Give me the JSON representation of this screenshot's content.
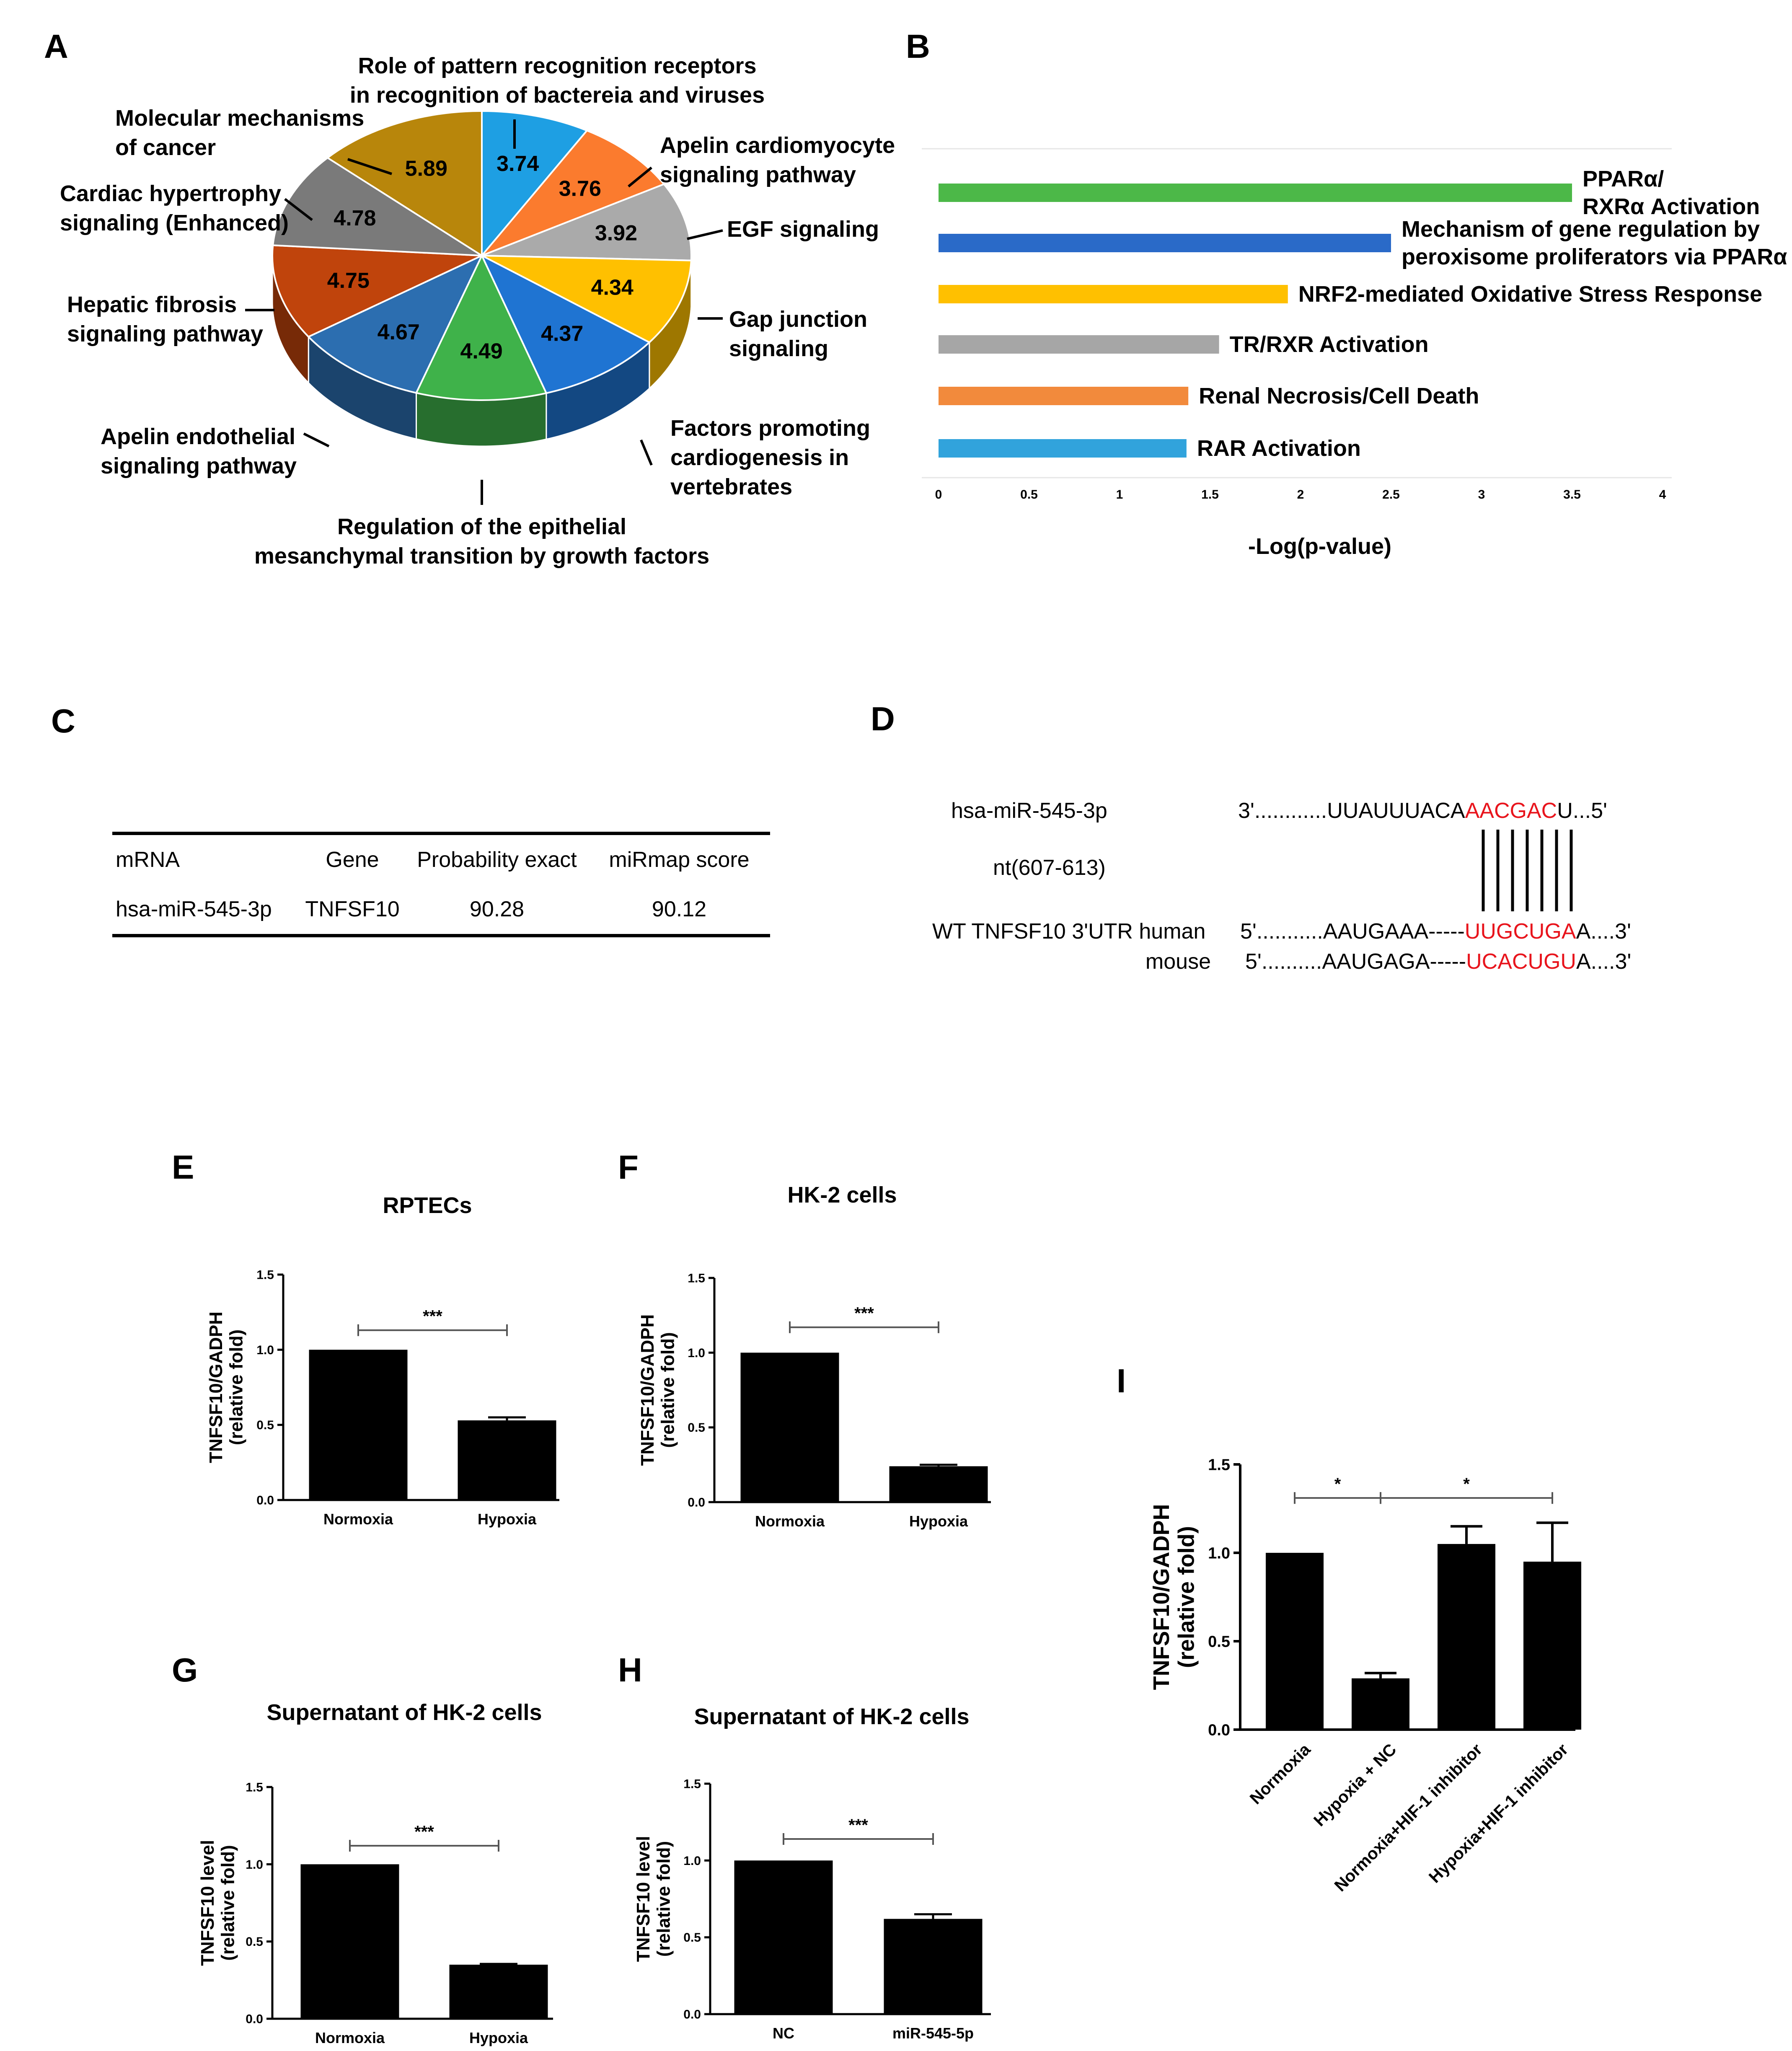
{
  "panels": {
    "A": "A",
    "B": "B",
    "C": "C",
    "D": "D",
    "E": "E",
    "F": "F",
    "G": "G",
    "H": "H",
    "I": "I"
  },
  "chart_data": [
    {
      "id": "A",
      "type": "pie",
      "title": "",
      "slices": [
        {
          "label": "Role of pattern recognition receptors in recognition of bactereia and viruses",
          "label_lines": [
            "Role of pattern recognition receptors",
            "in recognition of bactereia and viruses"
          ],
          "value": 3.74,
          "color": "#1e9fe3"
        },
        {
          "label": "Apelin cardiomyocyte signaling pathway",
          "label_lines": [
            "Apelin cardiomyocyte",
            "signaling pathway"
          ],
          "value": 3.76,
          "color": "#fb7b2e"
        },
        {
          "label": "EGF signaling",
          "label_lines": [
            "EGF signaling"
          ],
          "value": 3.92,
          "color": "#aaaaaa"
        },
        {
          "label": "Gap junction signaling",
          "label_lines": [
            "Gap junction",
            "signaling"
          ],
          "value": 4.34,
          "color": "#ffc000"
        },
        {
          "label": "Factors promoting cardiogenesis in vertebrates",
          "label_lines": [
            "Factors promoting",
            "cardiogenesis in",
            "vertebrates"
          ],
          "value": 4.37,
          "color": "#1f74d2"
        },
        {
          "label": "Regulation of the epithelial mesanchymal transition by growth factors",
          "label_lines": [
            "Regulation of the epithelial",
            "mesanchymal transition by growth factors"
          ],
          "value": 4.49,
          "color": "#3fb24a"
        },
        {
          "label": "Apelin endothelial signaling pathway",
          "label_lines": [
            "Apelin endothelial",
            "signaling pathway"
          ],
          "value": 4.67,
          "color": "#2c6eb0"
        },
        {
          "label": "Hepatic fibrosis signaling pathway",
          "label_lines": [
            "Hepatic fibrosis",
            "signaling pathway"
          ],
          "value": 4.75,
          "color": "#c0440c"
        },
        {
          "label": "Cardiac hypertrophy signaling (Enhanced)",
          "label_lines": [
            "Cardiac hypertrophy",
            "signaling (Enhanced)"
          ],
          "value": 4.78,
          "color": "#7a7a7a"
        },
        {
          "label": "Molecular mechanisms of cancer",
          "label_lines": [
            "Molecular mechanisms",
            "of cancer"
          ],
          "value": 5.89,
          "color": "#b8860b"
        }
      ]
    },
    {
      "id": "B",
      "type": "bar",
      "orientation": "horizontal",
      "xlabel": "-Log(p-value)",
      "xlim": [
        0,
        4
      ],
      "xticks": [
        "0",
        "0.5",
        "1",
        "1.5",
        "2",
        "2.5",
        "3",
        "3.5",
        "4"
      ],
      "bars": [
        {
          "label": "PPARα/ RXRα Activation",
          "label_lines": [
            "PPARα/",
            "RXRα Activation"
          ],
          "value": 3.5,
          "color": "#4cb848"
        },
        {
          "label": "Mechanism of gene regulation by peroxisome proliferators via PPARα",
          "label_lines": [
            "Mechanism of gene regulation by",
            "peroxisome proliferators via PPARα"
          ],
          "value": 2.5,
          "color": "#2a6ac8"
        },
        {
          "label": "NRF2-mediated Oxidative Stress Response",
          "label_lines": [
            "NRF2-mediated Oxidative Stress Response"
          ],
          "value": 1.93,
          "color": "#ffc000"
        },
        {
          "label": "TR/RXR Activation",
          "label_lines": [
            "TR/RXR Activation"
          ],
          "value": 1.55,
          "color": "#a6a6a6"
        },
        {
          "label": "Renal Necrosis/Cell Death",
          "label_lines": [
            "Renal Necrosis/Cell Death"
          ],
          "value": 1.38,
          "color": "#f28a3c"
        },
        {
          "label": "RAR Activation",
          "label_lines": [
            "RAR Activation"
          ],
          "value": 1.37,
          "color": "#31a3dc"
        }
      ]
    },
    {
      "id": "E",
      "type": "bar",
      "title": "RPTECs",
      "ylabel_lines": [
        "TNFSF10/GADPH",
        "(relative fold)"
      ],
      "ylim": [
        0,
        1.5
      ],
      "yticks": [
        "0.0",
        "0.5",
        "1.0",
        "1.5"
      ],
      "categories": [
        "Normoxia",
        "Hypoxia"
      ],
      "values": [
        1.0,
        0.53
      ],
      "errors": [
        0,
        0.02
      ],
      "significance": [
        {
          "from": 0,
          "to": 1,
          "label": "***",
          "y": 1.13
        }
      ]
    },
    {
      "id": "F",
      "type": "bar",
      "title": "HK-2 cells",
      "ylabel_lines": [
        "TNFSF10/GADPH",
        "(relative fold)"
      ],
      "ylim": [
        0,
        1.5
      ],
      "yticks": [
        "0.0",
        "0.5",
        "1.0",
        "1.5"
      ],
      "categories": [
        "Normoxia",
        "Hypoxia"
      ],
      "values": [
        1.0,
        0.24
      ],
      "errors": [
        0,
        0.01
      ],
      "significance": [
        {
          "from": 0,
          "to": 1,
          "label": "***",
          "y": 1.17
        }
      ]
    },
    {
      "id": "G",
      "type": "bar",
      "title": "Supernatant of HK-2 cells",
      "ylabel_lines": [
        "TNFSF10 level",
        "(relative fold)"
      ],
      "ylim": [
        0,
        1.5
      ],
      "yticks": [
        "0.0",
        "0.5",
        "1.0",
        "1.5"
      ],
      "categories": [
        "Normoxia",
        "Hypoxia"
      ],
      "values": [
        1.0,
        0.35
      ],
      "errors": [
        0,
        0.005
      ],
      "significance": [
        {
          "from": 0,
          "to": 1,
          "label": "***",
          "y": 1.12
        }
      ]
    },
    {
      "id": "H",
      "type": "bar",
      "title": "Supernatant of HK-2 cells",
      "ylabel_lines": [
        "TNFSF10 level",
        "(relative fold)"
      ],
      "ylim": [
        0,
        1.5
      ],
      "yticks": [
        "0.0",
        "0.5",
        "1.0",
        "1.5"
      ],
      "categories": [
        "NC",
        "miR-545-5p"
      ],
      "values": [
        1.0,
        0.62
      ],
      "errors": [
        0,
        0.03
      ],
      "significance": [
        {
          "from": 0,
          "to": 1,
          "label": "***",
          "y": 1.14
        }
      ]
    },
    {
      "id": "I",
      "type": "bar",
      "title": "",
      "ylabel_lines": [
        "TNFSF10/GADPH",
        "(relative fold)"
      ],
      "ylim": [
        0,
        1.5
      ],
      "yticks": [
        "0.0",
        "0.5",
        "1.0",
        "1.5"
      ],
      "categories": [
        "Normoxia",
        "Hypoxia + NC",
        "Normoxia+HIF-1 inhibitor",
        "Hypoxia+HIF-1 inhibitor"
      ],
      "values": [
        1.0,
        0.29,
        1.05,
        0.95
      ],
      "errors": [
        0,
        0.03,
        0.1,
        0.22
      ],
      "significance": [
        {
          "from": 0,
          "to": 1,
          "label": "*",
          "y": 1.31
        },
        {
          "from": 1,
          "to": 3,
          "label": "*",
          "y": 1.31
        }
      ]
    }
  ],
  "table_c": {
    "headers": [
      "mRNA",
      "Gene",
      "Probability exact",
      "miRmap score"
    ],
    "rows": [
      [
        "hsa-miR-545-3p",
        "TNFSF10",
        "90.28",
        "90.12"
      ]
    ]
  },
  "alignment_d": {
    "mirna_label": "hsa-miR-545-3p",
    "mirna_prefix": "3'............UUAUUUACA",
    "mirna_seed": "AACGAC",
    "mirna_suffix": "U...5'",
    "nt_label": "nt(607-613)",
    "human_label": "WT TNFSF10  3'UTR human",
    "human_prefix": "5'...........AAUGAAA-----",
    "human_seed": "UUGCUGA",
    "human_suffix": "A....3'",
    "mouse_label": "mouse",
    "mouse_prefix": "5'..........AAUGAGA-----",
    "mouse_seed": "UCACUGU",
    "mouse_suffix": "A....3'",
    "seed_color": "#e8141c"
  }
}
